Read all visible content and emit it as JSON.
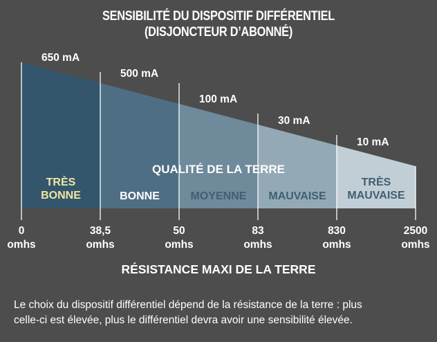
{
  "title_line1": "SENSIBILITÉ DU DISPOSITIF DIFFÉRENTIEL",
  "title_line2": "(DISJONCTEUR D’ABONNÉ)",
  "center_label": "QUALITÉ DE LA TERRE",
  "x_axis_title": "RÉSISTANCE MAXI DE LA TERRE",
  "footer_text_line1": "Le choix du dispositif différentiel dépend de la résistance de la terre : plus",
  "footer_text_line2": "celle-ci est élevée, plus le différentiel devra avoir une sensibilité élevée.",
  "sensitivities": [
    "650 mA",
    "500 mA",
    "100 mA",
    "30 mA",
    "10 mA"
  ],
  "qualities": [
    {
      "lines": [
        "TRÈS",
        "BONNE"
      ],
      "color": "#f3e6a0"
    },
    {
      "lines": [
        "BONNE"
      ],
      "color": "#ffffff"
    },
    {
      "lines": [
        "MOYENNE"
      ],
      "color": "#3f5f72"
    },
    {
      "lines": [
        "MAUVAISE"
      ],
      "color": "#3f5f72"
    },
    {
      "lines": [
        "TRÈS",
        "MAUVAISE"
      ],
      "color": "#3f5f72"
    }
  ],
  "ticks": [
    {
      "value": "0",
      "unit": "omhs"
    },
    {
      "value": "38,5",
      "unit": "omhs"
    },
    {
      "value": "50",
      "unit": "omhs"
    },
    {
      "value": "83",
      "unit": "omhs"
    },
    {
      "value": "830",
      "unit": "omhs"
    },
    {
      "value": "2500",
      "unit": "omhs"
    }
  ],
  "colors": {
    "background": "#4d4d4d",
    "segment_fills": [
      "#33566c",
      "#4e6f83",
      "#6e8a9b",
      "#94a9b6",
      "#c2ced6"
    ],
    "divider": "#ffffff"
  }
}
